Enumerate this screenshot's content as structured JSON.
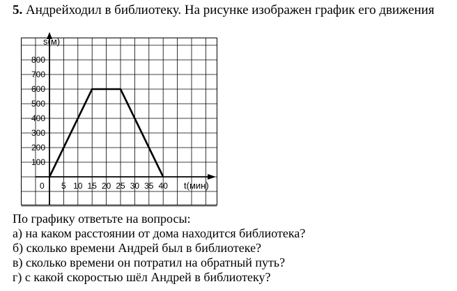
{
  "problem": {
    "number": "5.",
    "text": "Андрейходил в библиотеку. На рисунке изображен график его движения"
  },
  "chart_data": {
    "type": "line",
    "ylabel": "s(м)",
    "xlabel": "t(мин)",
    "origin_label": "0",
    "x_ticks": [
      "5",
      "10",
      "15",
      "20",
      "25",
      "30",
      "35",
      "40"
    ],
    "y_ticks": [
      "100",
      "200",
      "300",
      "400",
      "500",
      "600",
      "700",
      "800"
    ],
    "xlim": [
      0,
      55
    ],
    "ylim": [
      0,
      900
    ],
    "grid": true,
    "series": [
      {
        "x": [
          0,
          15,
          25,
          40
        ],
        "y": [
          0,
          600,
          600,
          0
        ]
      }
    ]
  },
  "questions": {
    "intro": "По графику ответьте на вопросы:",
    "a": "а) на каком расстоянии от дома находится библиотека?",
    "b": "б) сколько времени Андрей был в библиотеке?",
    "c": "в) сколько времени он потратил на обратный путь?",
    "d": "г) с какой скоростью шёл Андрей в библиотеку?"
  }
}
